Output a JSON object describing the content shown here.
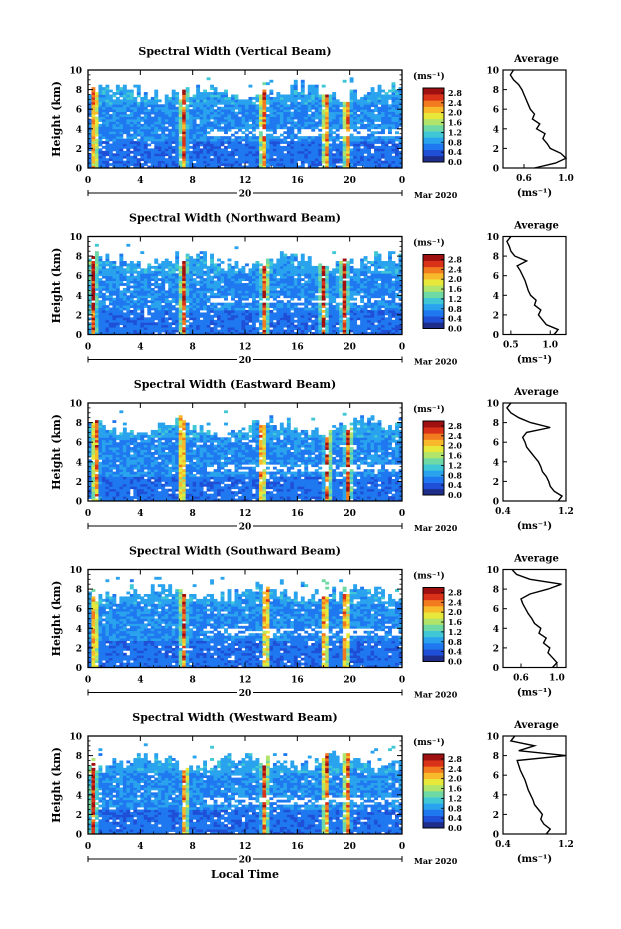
{
  "figure": {
    "x_axis_label": "Local Time",
    "date_label": "Mar 2020",
    "day_label": "20",
    "y_axis_label": "Height (km)",
    "colorbar_unit": "(ms⁻¹)",
    "average_title": "Average",
    "average_unit": "(ms⁻¹)",
    "colormap": [
      "#1f2d8a",
      "#1e4fd6",
      "#1f78f0",
      "#2aa3ee",
      "#3fc7d6",
      "#6fd9a6",
      "#b0e46a",
      "#e8e83a",
      "#f8b92a",
      "#f27a1f",
      "#d93218",
      "#a01010"
    ]
  },
  "chart_data": [
    {
      "type": "heatmap",
      "title": "Spectral Width (Vertical Beam)",
      "xlabel": "Local Time",
      "ylabel": "Height (km)",
      "xlim": [
        0,
        24
      ],
      "ylim": [
        0,
        10
      ],
      "x_ticks": [
        "0",
        "4",
        "8",
        "12",
        "16",
        "20",
        "0"
      ],
      "y_ticks": [
        "0",
        "2",
        "4",
        "6",
        "8",
        "10"
      ],
      "colorbar": {
        "ticks": [
          "0.0",
          "0.4",
          "0.8",
          "1.2",
          "1.6",
          "2.0",
          "2.4",
          "2.8"
        ],
        "range": [
          0,
          3.0
        ]
      },
      "features": {
        "top_km": 7.8,
        "cloud_km": 2.8,
        "hot_columns_hr": [
          0.5,
          7.3,
          13.4,
          18.2,
          19.8
        ]
      },
      "average_profile": {
        "xlim": [
          0.4,
          1.0
        ],
        "x_ticks": [
          "0.6",
          "1.0"
        ],
        "height_km": [
          0,
          0.5,
          1,
          1.5,
          2,
          2.5,
          3,
          3.5,
          4,
          4.5,
          5,
          5.5,
          6,
          6.5,
          7,
          7.5,
          8,
          8.5,
          9,
          9.5,
          10
        ],
        "values": [
          0.7,
          0.9,
          1.0,
          0.95,
          0.85,
          0.82,
          0.78,
          0.8,
          0.72,
          0.75,
          0.68,
          0.7,
          0.66,
          0.64,
          0.62,
          0.6,
          0.58,
          0.55,
          0.5,
          0.47,
          0.5
        ]
      }
    },
    {
      "type": "heatmap",
      "title": "Spectral Width (Northward Beam)",
      "xlabel": "Local Time",
      "ylabel": "Height (km)",
      "xlim": [
        0,
        24
      ],
      "ylim": [
        0,
        10
      ],
      "x_ticks": [
        "0",
        "4",
        "8",
        "12",
        "16",
        "20",
        "0"
      ],
      "y_ticks": [
        "0",
        "2",
        "4",
        "6",
        "8",
        "10"
      ],
      "colorbar": {
        "ticks": [
          "0.0",
          "0.4",
          "0.8",
          "1.2",
          "1.6",
          "2.0",
          "2.4",
          "2.8"
        ],
        "range": [
          0,
          3.0
        ]
      },
      "features": {
        "top_km": 7.5,
        "cloud_km": 2.6,
        "hot_columns_hr": [
          0.4,
          7.3,
          13.5,
          18.0,
          19.6
        ]
      },
      "average_profile": {
        "xlim": [
          0.4,
          1.2
        ],
        "x_ticks": [
          "0.5",
          "1.0"
        ],
        "height_km": [
          0,
          0.5,
          1,
          1.5,
          2,
          2.5,
          3,
          3.5,
          4,
          4.5,
          5,
          5.5,
          6,
          6.5,
          7,
          7.5,
          8,
          8.5,
          9,
          9.5,
          10
        ],
        "values": [
          1.05,
          1.1,
          0.95,
          0.9,
          0.85,
          0.88,
          0.8,
          0.82,
          0.75,
          0.72,
          0.7,
          0.68,
          0.65,
          0.62,
          0.58,
          0.7,
          0.55,
          0.5,
          0.48,
          0.45,
          0.5
        ]
      }
    },
    {
      "type": "heatmap",
      "title": "Spectral Width (Eastward Beam)",
      "xlabel": "Local Time",
      "ylabel": "Height (km)",
      "xlim": [
        0,
        24
      ],
      "ylim": [
        0,
        10
      ],
      "x_ticks": [
        "0",
        "4",
        "8",
        "12",
        "16",
        "20",
        "0"
      ],
      "y_ticks": [
        "0",
        "2",
        "4",
        "6",
        "8",
        "10"
      ],
      "colorbar": {
        "ticks": [
          "0.0",
          "0.4",
          "0.8",
          "1.2",
          "1.6",
          "2.0",
          "2.4",
          "2.8"
        ],
        "range": [
          0,
          3.0
        ]
      },
      "features": {
        "top_km": 7.6,
        "cloud_km": 2.5,
        "hot_columns_hr": [
          0.6,
          7.2,
          13.3,
          18.3,
          19.9
        ]
      },
      "average_profile": {
        "xlim": [
          0.4,
          1.2
        ],
        "x_ticks": [
          "0.4",
          "1.2"
        ],
        "height_km": [
          0,
          0.5,
          1,
          1.5,
          2,
          2.5,
          3,
          3.5,
          4,
          4.5,
          5,
          5.5,
          6,
          6.5,
          7,
          7.5,
          8,
          8.5,
          9,
          9.5,
          10
        ],
        "values": [
          1.1,
          1.15,
          1.05,
          1.0,
          0.98,
          0.95,
          0.9,
          0.88,
          0.85,
          0.8,
          0.75,
          0.7,
          0.68,
          0.65,
          0.7,
          1.0,
          0.75,
          0.6,
          0.5,
          0.45,
          0.5
        ]
      }
    },
    {
      "type": "heatmap",
      "title": "Spectral Width (Southward Beam)",
      "xlabel": "Local Time",
      "ylabel": "Height (km)",
      "xlim": [
        0,
        24
      ],
      "ylim": [
        0,
        10
      ],
      "x_ticks": [
        "0",
        "4",
        "8",
        "12",
        "16",
        "20",
        "0"
      ],
      "y_ticks": [
        "0",
        "2",
        "4",
        "6",
        "8",
        "10"
      ],
      "colorbar": {
        "ticks": [
          "0.0",
          "0.4",
          "0.8",
          "1.2",
          "1.6",
          "2.0",
          "2.4",
          "2.8"
        ],
        "range": [
          0,
          3.0
        ]
      },
      "features": {
        "top_km": 7.7,
        "cloud_km": 2.7,
        "hot_columns_hr": [
          0.5,
          7.3,
          13.6,
          18.1,
          19.7
        ]
      },
      "average_profile": {
        "xlim": [
          0.4,
          1.1
        ],
        "x_ticks": [
          "0.6",
          "1.0"
        ],
        "height_km": [
          0,
          0.5,
          1,
          1.5,
          2,
          2.5,
          3,
          3.5,
          4,
          4.5,
          5,
          5.5,
          6,
          6.5,
          7,
          7.5,
          8,
          8.5,
          9,
          9.5,
          10
        ],
        "values": [
          0.95,
          1.0,
          0.95,
          0.9,
          0.92,
          0.85,
          0.88,
          0.8,
          0.82,
          0.75,
          0.72,
          0.68,
          0.65,
          0.62,
          0.6,
          0.7,
          0.9,
          1.05,
          0.7,
          0.55,
          0.5
        ]
      }
    },
    {
      "type": "heatmap",
      "title": "Spectral Width (Westward Beam)",
      "xlabel": "Local Time",
      "ylabel": "Height (km)",
      "xlim": [
        0,
        24
      ],
      "ylim": [
        0,
        10
      ],
      "x_ticks": [
        "0",
        "4",
        "8",
        "12",
        "16",
        "20",
        "0"
      ],
      "y_ticks": [
        "0",
        "2",
        "4",
        "6",
        "8",
        "10"
      ],
      "colorbar": {
        "ticks": [
          "0.0",
          "0.4",
          "0.8",
          "1.2",
          "1.6",
          "2.0",
          "2.4",
          "2.8"
        ],
        "range": [
          0,
          3.0
        ]
      },
      "features": {
        "top_km": 7.4,
        "cloud_km": 2.5,
        "hot_columns_hr": [
          0.4,
          7.4,
          13.5,
          18.2,
          19.8
        ]
      },
      "average_profile": {
        "xlim": [
          0.4,
          1.2
        ],
        "x_ticks": [
          "0.4",
          "1.2"
        ],
        "height_km": [
          0,
          0.5,
          1,
          1.5,
          2,
          2.5,
          3,
          3.5,
          4,
          4.5,
          5,
          5.5,
          6,
          6.5,
          7,
          7.5,
          8,
          8.5,
          9,
          9.5,
          10
        ],
        "values": [
          0.95,
          1.0,
          0.92,
          0.88,
          0.9,
          0.85,
          0.8,
          0.78,
          0.75,
          0.72,
          0.7,
          0.68,
          0.65,
          0.62,
          0.6,
          0.58,
          1.2,
          0.6,
          0.8,
          0.5,
          0.55
        ]
      }
    }
  ]
}
